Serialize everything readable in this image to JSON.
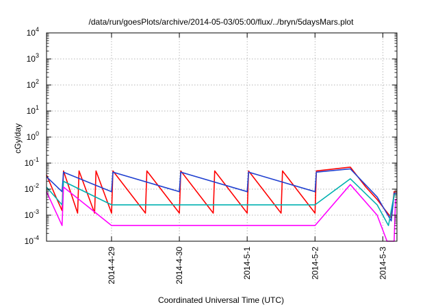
{
  "chart_data": {
    "type": "line",
    "title": "/data/run/goesPlots/archive/2014-05-03/05:00/flux/../bryn/5daysMars.plot",
    "xlabel": "Coordinated Universal Time (UTC)",
    "ylabel": "cGy/day",
    "y_scale": "log",
    "ylim_exponents": [
      -4,
      4
    ],
    "ylim": [
      0.0001,
      10000
    ],
    "y_tick_exponents": [
      -4,
      -3,
      -2,
      -1,
      0,
      1,
      2,
      3,
      4
    ],
    "x_tick_labels": [
      "2014-4-29",
      "2014-4-30",
      "2014-5-1",
      "2014-5-2",
      "2014-5-3"
    ],
    "xlim": [
      "2014-04-28 01:00",
      "2014-05-03 05:00"
    ],
    "x_ticks": [
      "2014-04-29 00:00",
      "2014-04-30 00:00",
      "2014-05-01 00:00",
      "2014-05-02 00:00",
      "2014-05-03 00:00"
    ],
    "grid": true,
    "legend": "none",
    "series": [
      {
        "color": "#ff0000",
        "values": [
          {
            "x": "2014-04-28 01:00",
            "y": 0.035
          },
          {
            "x": "2014-04-28 04:00",
            "y": 0.006
          },
          {
            "x": "2014-04-28 06:30",
            "y": 0.0015
          },
          {
            "x": "2014-04-28 07:00",
            "y": 0.05
          },
          {
            "x": "2014-04-28 12:00",
            "y": 0.0012
          },
          {
            "x": "2014-04-28 12:30",
            "y": 0.05
          },
          {
            "x": "2014-04-28 18:00",
            "y": 0.0012
          },
          {
            "x": "2014-04-28 18:30",
            "y": 0.05
          },
          {
            "x": "2014-04-29 00:00",
            "y": 0.0012
          },
          {
            "x": "2014-04-29 00:30",
            "y": 0.05
          },
          {
            "x": "2014-04-29 12:00",
            "y": 0.0012
          },
          {
            "x": "2014-04-29 12:30",
            "y": 0.05
          },
          {
            "x": "2014-04-30 00:00",
            "y": 0.0012
          },
          {
            "x": "2014-04-30 00:30",
            "y": 0.05
          },
          {
            "x": "2014-04-30 12:00",
            "y": 0.0012
          },
          {
            "x": "2014-04-30 12:30",
            "y": 0.05
          },
          {
            "x": "2014-05-01 00:00",
            "y": 0.0012
          },
          {
            "x": "2014-05-01 00:30",
            "y": 0.05
          },
          {
            "x": "2014-05-01 12:00",
            "y": 0.0012
          },
          {
            "x": "2014-05-01 12:30",
            "y": 0.05
          },
          {
            "x": "2014-05-02 00:00",
            "y": 0.0012
          },
          {
            "x": "2014-05-02 00:30",
            "y": 0.05
          },
          {
            "x": "2014-05-02 12:30",
            "y": 0.07
          },
          {
            "x": "2014-05-02 18:00",
            "y": 0.012
          },
          {
            "x": "2014-05-02 22:00",
            "y": 0.004
          },
          {
            "x": "2014-05-03 01:00",
            "y": 0.0015
          },
          {
            "x": "2014-05-03 03:00",
            "y": 0.0008
          },
          {
            "x": "2014-05-03 04:00",
            "y": 0.008
          },
          {
            "x": "2014-05-03 05:00",
            "y": 0.008
          }
        ]
      },
      {
        "color": "#2040d0",
        "values": [
          {
            "x": "2014-04-28 01:00",
            "y": 0.03
          },
          {
            "x": "2014-04-28 06:30",
            "y": 0.008
          },
          {
            "x": "2014-04-28 07:00",
            "y": 0.045
          },
          {
            "x": "2014-04-29 00:00",
            "y": 0.008
          },
          {
            "x": "2014-04-29 00:30",
            "y": 0.045
          },
          {
            "x": "2014-04-30 00:00",
            "y": 0.008
          },
          {
            "x": "2014-04-30 00:30",
            "y": 0.045
          },
          {
            "x": "2014-05-01 00:00",
            "y": 0.008
          },
          {
            "x": "2014-05-01 00:30",
            "y": 0.045
          },
          {
            "x": "2014-05-02 00:00",
            "y": 0.008
          },
          {
            "x": "2014-05-02 00:30",
            "y": 0.045
          },
          {
            "x": "2014-05-02 12:30",
            "y": 0.06
          },
          {
            "x": "2014-05-02 22:00",
            "y": 0.005
          },
          {
            "x": "2014-05-03 03:00",
            "y": 0.0006
          },
          {
            "x": "2014-05-03 04:00",
            "y": 0.007
          },
          {
            "x": "2014-05-03 05:00",
            "y": 0.007
          }
        ]
      },
      {
        "color": "#00b0b0",
        "values": [
          {
            "x": "2014-04-28 01:00",
            "y": 0.012
          },
          {
            "x": "2014-04-28 06:30",
            "y": 0.0025
          },
          {
            "x": "2014-04-28 07:00",
            "y": 0.02
          },
          {
            "x": "2014-04-29 00:00",
            "y": 0.0025
          },
          {
            "x": "2014-04-30 00:00",
            "y": 0.0025
          },
          {
            "x": "2014-05-01 00:00",
            "y": 0.0025
          },
          {
            "x": "2014-05-02 00:00",
            "y": 0.0025
          },
          {
            "x": "2014-05-02 12:30",
            "y": 0.025
          },
          {
            "x": "2014-05-02 22:00",
            "y": 0.0025
          },
          {
            "x": "2014-05-03 02:00",
            "y": 0.0004
          },
          {
            "x": "2014-05-03 04:00",
            "y": 0.006
          },
          {
            "x": "2014-05-03 05:00",
            "y": 0.006
          }
        ]
      },
      {
        "color": "#ff00ff",
        "values": [
          {
            "x": "2014-04-28 01:00",
            "y": 0.008
          },
          {
            "x": "2014-04-28 06:30",
            "y": 0.0004
          },
          {
            "x": "2014-04-28 07:00",
            "y": 0.012
          },
          {
            "x": "2014-04-29 00:00",
            "y": 0.0004
          },
          {
            "x": "2014-04-30 00:00",
            "y": 0.0004
          },
          {
            "x": "2014-05-01 00:00",
            "y": 0.0004
          },
          {
            "x": "2014-05-02 00:00",
            "y": 0.0004
          },
          {
            "x": "2014-05-02 12:30",
            "y": 0.015
          },
          {
            "x": "2014-05-02 22:00",
            "y": 0.001
          },
          {
            "x": "2014-05-03 01:30",
            "y": 0.0001
          },
          {
            "x": "2014-05-03 04:00",
            "y": 0.0001
          },
          {
            "x": "2014-05-03 04:30",
            "y": 0.004
          },
          {
            "x": "2014-05-03 05:00",
            "y": 0.004
          }
        ]
      }
    ]
  }
}
